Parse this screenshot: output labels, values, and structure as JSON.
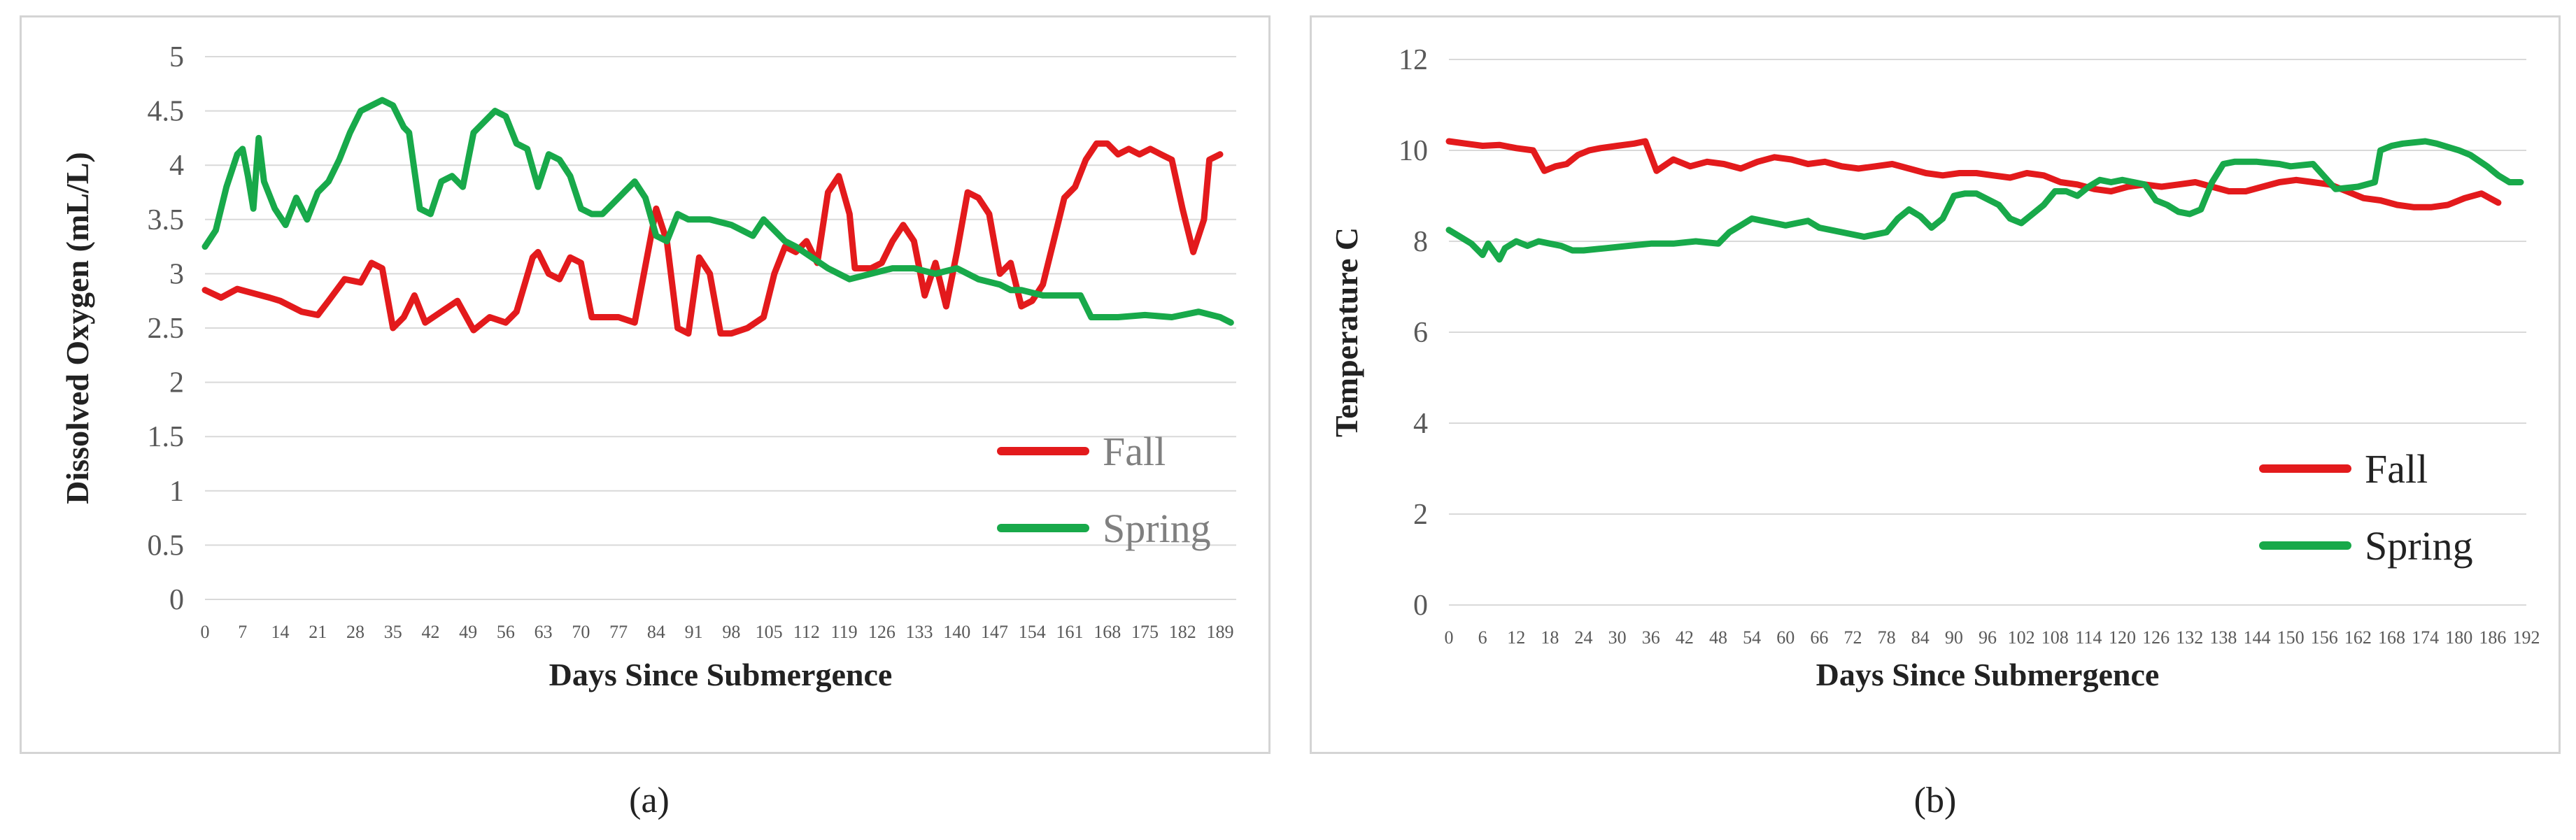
{
  "chart_data": [
    {
      "id": "a",
      "type": "line",
      "title": "",
      "xlabel": "Days Since Submergence",
      "ylabel": "Dissolved Oxygen (mL/L)",
      "ylim": [
        0,
        5
      ],
      "yticks": [
        "0",
        "0.5",
        "1",
        "1.5",
        "2",
        "2.5",
        "3",
        "3.5",
        "4",
        "4.5",
        "5"
      ],
      "xlim": [
        0,
        192
      ],
      "xticks": [
        "0",
        "7",
        "14",
        "21",
        "28",
        "35",
        "42",
        "49",
        "56",
        "63",
        "70",
        "77",
        "84",
        "91",
        "98",
        "105",
        "112",
        "119",
        "126",
        "133",
        "140",
        "147",
        "154",
        "161",
        "168",
        "175",
        "182",
        "189"
      ],
      "grid": true,
      "legend": "bottom-right",
      "series": [
        {
          "name": "Fall",
          "color": "#e31a1c",
          "text_color": "#808080",
          "x": [
            0,
            3,
            6,
            9,
            12,
            14,
            18,
            21,
            23,
            26,
            29,
            31,
            33,
            35,
            37,
            39,
            41,
            44,
            47,
            50,
            53,
            56,
            58,
            61,
            62,
            64,
            66,
            68,
            70,
            72,
            74,
            77,
            80,
            84,
            86,
            88,
            90,
            92,
            94,
            96,
            98,
            101,
            104,
            106,
            108,
            110,
            112,
            114,
            116,
            118,
            120,
            121,
            124,
            126,
            128,
            130,
            132,
            134,
            136,
            138,
            140,
            142,
            144,
            146,
            148,
            150,
            152,
            154,
            156,
            158,
            160,
            162,
            164,
            166,
            168,
            170,
            172,
            174,
            176,
            178,
            180,
            182,
            184,
            186,
            187,
            189
          ],
          "y": [
            2.85,
            2.78,
            2.86,
            2.82,
            2.78,
            2.75,
            2.65,
            2.62,
            2.75,
            2.95,
            2.92,
            3.1,
            3.05,
            2.5,
            2.6,
            2.8,
            2.55,
            2.65,
            2.75,
            2.48,
            2.6,
            2.55,
            2.65,
            3.15,
            3.2,
            3.0,
            2.95,
            3.15,
            3.1,
            2.6,
            2.6,
            2.6,
            2.55,
            3.6,
            3.3,
            2.5,
            2.45,
            3.15,
            3.0,
            2.45,
            2.45,
            2.5,
            2.6,
            3.0,
            3.25,
            3.2,
            3.3,
            3.1,
            3.75,
            3.9,
            3.55,
            3.05,
            3.05,
            3.1,
            3.3,
            3.45,
            3.3,
            2.8,
            3.1,
            2.7,
            3.2,
            3.75,
            3.7,
            3.55,
            3.0,
            3.1,
            2.7,
            2.75,
            2.9,
            3.3,
            3.7,
            3.8,
            4.05,
            4.2,
            4.2,
            4.1,
            4.15,
            4.1,
            4.15,
            4.1,
            4.05,
            3.6,
            3.2,
            3.5,
            4.05,
            4.1
          ]
        },
        {
          "name": "Spring",
          "color": "#18a94a",
          "text_color": "#808080",
          "x": [
            0,
            2,
            4,
            6,
            7,
            8,
            9,
            10,
            11,
            13,
            15,
            17,
            19,
            21,
            23,
            25,
            27,
            29,
            31,
            33,
            35,
            36,
            37,
            38,
            40,
            42,
            44,
            46,
            48,
            50,
            52,
            54,
            56,
            58,
            60,
            62,
            64,
            66,
            68,
            70,
            72,
            74,
            76,
            78,
            80,
            82,
            84,
            86,
            88,
            90,
            94,
            98,
            100,
            102,
            104,
            106,
            108,
            110,
            113,
            116,
            120,
            124,
            128,
            132,
            136,
            140,
            144,
            148,
            150,
            152,
            156,
            160,
            163,
            165,
            170,
            175,
            180,
            185,
            189,
            191
          ],
          "y": [
            3.25,
            3.4,
            3.8,
            4.1,
            4.15,
            3.9,
            3.6,
            4.25,
            3.85,
            3.6,
            3.45,
            3.7,
            3.5,
            3.75,
            3.85,
            4.05,
            4.3,
            4.5,
            4.55,
            4.6,
            4.55,
            4.45,
            4.35,
            4.3,
            3.6,
            3.55,
            3.85,
            3.9,
            3.8,
            4.3,
            4.4,
            4.5,
            4.45,
            4.2,
            4.15,
            3.8,
            4.1,
            4.05,
            3.9,
            3.6,
            3.55,
            3.55,
            3.65,
            3.75,
            3.85,
            3.7,
            3.35,
            3.3,
            3.55,
            3.5,
            3.5,
            3.45,
            3.4,
            3.35,
            3.5,
            3.4,
            3.3,
            3.25,
            3.15,
            3.05,
            2.95,
            3.0,
            3.05,
            3.05,
            3.0,
            3.05,
            2.95,
            2.9,
            2.85,
            2.85,
            2.8,
            2.8,
            2.8,
            2.6,
            2.6,
            2.62,
            2.6,
            2.65,
            2.6,
            2.55
          ]
        }
      ]
    },
    {
      "id": "b",
      "type": "line",
      "title": "",
      "xlabel": "Days Since Submergence",
      "ylabel": "Temperature C",
      "ylim": [
        0,
        12
      ],
      "yticks": [
        "0",
        "2",
        "4",
        "6",
        "8",
        "10",
        "12"
      ],
      "xlim": [
        0,
        192
      ],
      "xticks": [
        "0",
        "6",
        "12",
        "18",
        "24",
        "30",
        "36",
        "42",
        "48",
        "54",
        "60",
        "66",
        "72",
        "78",
        "84",
        "90",
        "96",
        "102",
        "108",
        "114",
        "120",
        "126",
        "132",
        "138",
        "144",
        "150",
        "156",
        "162",
        "168",
        "174",
        "180",
        "186",
        "192"
      ],
      "grid": true,
      "legend": "bottom-right",
      "series": [
        {
          "name": "Fall",
          "color": "#e31a1c",
          "text_color": "#222222",
          "x": [
            0,
            3,
            6,
            9,
            12,
            15,
            17,
            19,
            21,
            23,
            25,
            27,
            30,
            33,
            35,
            37,
            40,
            43,
            46,
            49,
            52,
            55,
            58,
            61,
            64,
            67,
            70,
            73,
            76,
            79,
            82,
            85,
            88,
            91,
            94,
            97,
            100,
            103,
            106,
            109,
            112,
            115,
            118,
            121,
            124,
            127,
            130,
            133,
            136,
            139,
            142,
            145,
            148,
            151,
            154,
            157,
            160,
            163,
            166,
            169,
            172,
            175,
            178,
            181,
            184,
            187
          ],
          "y": [
            10.2,
            10.15,
            10.1,
            10.12,
            10.05,
            10.0,
            9.55,
            9.65,
            9.7,
            9.9,
            10.0,
            10.05,
            10.1,
            10.15,
            10.2,
            9.55,
            9.8,
            9.65,
            9.75,
            9.7,
            9.6,
            9.75,
            9.85,
            9.8,
            9.7,
            9.75,
            9.65,
            9.6,
            9.65,
            9.7,
            9.6,
            9.5,
            9.45,
            9.5,
            9.5,
            9.45,
            9.4,
            9.5,
            9.45,
            9.3,
            9.25,
            9.15,
            9.1,
            9.2,
            9.25,
            9.2,
            9.25,
            9.3,
            9.2,
            9.1,
            9.1,
            9.2,
            9.3,
            9.35,
            9.3,
            9.25,
            9.1,
            8.95,
            8.9,
            8.8,
            8.75,
            8.75,
            8.8,
            8.95,
            9.05,
            8.85
          ]
        },
        {
          "name": "Spring",
          "color": "#18a94a",
          "text_color": "#222222",
          "x": [
            0,
            2,
            4,
            6,
            7,
            9,
            10,
            12,
            14,
            16,
            18,
            20,
            22,
            24,
            28,
            32,
            36,
            40,
            44,
            48,
            50,
            52,
            54,
            56,
            58,
            60,
            62,
            64,
            66,
            70,
            74,
            78,
            80,
            82,
            84,
            86,
            88,
            90,
            92,
            94,
            98,
            100,
            102,
            104,
            106,
            108,
            110,
            112,
            114,
            116,
            118,
            120,
            124,
            126,
            128,
            130,
            132,
            134,
            136,
            138,
            140,
            144,
            148,
            150,
            154,
            158,
            162,
            165,
            166,
            168,
            170,
            174,
            176,
            180,
            182,
            185,
            187,
            189,
            191
          ],
          "y": [
            8.25,
            8.1,
            7.95,
            7.7,
            7.95,
            7.6,
            7.85,
            8.0,
            7.9,
            8.0,
            7.95,
            7.9,
            7.8,
            7.8,
            7.85,
            7.9,
            7.95,
            7.95,
            8.0,
            7.95,
            8.2,
            8.35,
            8.5,
            8.45,
            8.4,
            8.35,
            8.4,
            8.45,
            8.3,
            8.2,
            8.1,
            8.2,
            8.5,
            8.7,
            8.55,
            8.3,
            8.5,
            9.0,
            9.05,
            9.05,
            8.8,
            8.5,
            8.4,
            8.6,
            8.8,
            9.1,
            9.1,
            9.0,
            9.2,
            9.35,
            9.3,
            9.35,
            9.25,
            8.9,
            8.8,
            8.65,
            8.6,
            8.7,
            9.3,
            9.7,
            9.75,
            9.75,
            9.7,
            9.65,
            9.7,
            9.15,
            9.2,
            9.3,
            10.0,
            10.1,
            10.15,
            10.2,
            10.15,
            10.0,
            9.9,
            9.65,
            9.45,
            9.3,
            9.3
          ]
        }
      ]
    }
  ],
  "captions": {
    "a": "(a)",
    "b": "(b)"
  }
}
